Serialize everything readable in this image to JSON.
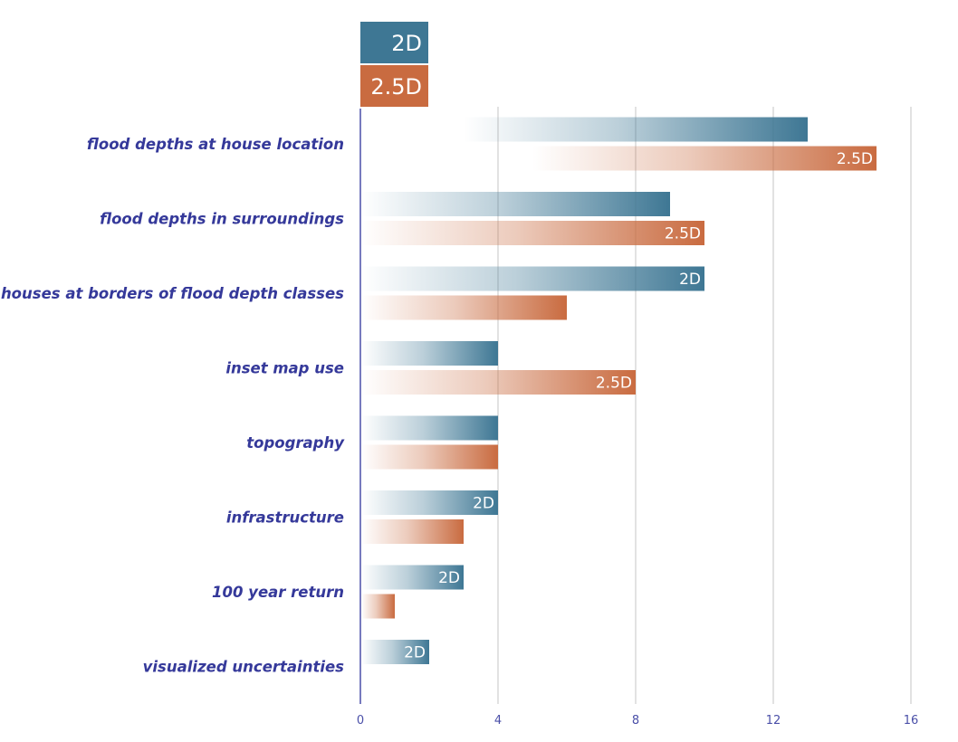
{
  "chart_data": {
    "type": "bar",
    "orientation": "horizontal",
    "categories": [
      "flood depths at house location",
      "flood depths in surroundings",
      "houses at borders of flood depth classes",
      "inset map use",
      "topography",
      "infrastructure",
      "100 year return",
      "visualized uncertainties"
    ],
    "series": [
      {
        "name": "2D",
        "color": "#3e7794",
        "values": [
          13,
          9,
          10,
          4,
          4,
          4,
          3,
          2
        ],
        "labels": [
          "",
          "",
          "2D",
          "",
          "",
          "2D",
          "2D",
          "2D"
        ]
      },
      {
        "name": "2.5D",
        "color": "#c96b40",
        "values": [
          15,
          10,
          6,
          8,
          4,
          3,
          1,
          0
        ],
        "labels": [
          "2.5D",
          "2.5D",
          "",
          "2.5D",
          "",
          "",
          "",
          ""
        ]
      }
    ],
    "xlim": [
      0,
      16
    ],
    "xticks": [
      "0",
      "4",
      "8",
      "12",
      "16"
    ],
    "grid": true,
    "legend_position": "top"
  }
}
